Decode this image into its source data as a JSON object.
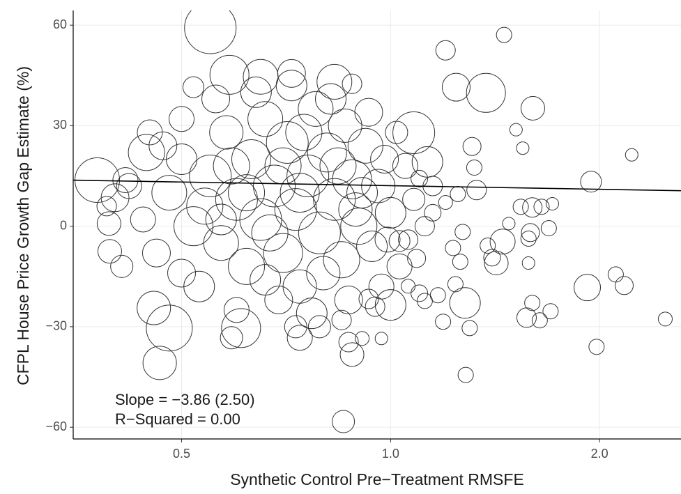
{
  "chart_data": {
    "type": "bubble",
    "x_label": "Synthetic Control Pre−Treatment RMSFE",
    "y_label": "CFPL House Price Growth Gap Estimate (%)",
    "annotations": [
      "Slope = −3.86 (2.50)",
      "R−Squared = 0.00"
    ],
    "x_log": true,
    "grid": true,
    "xlim": [
      0.349,
      2.62
    ],
    "ylim": [
      -63.5,
      64.4
    ],
    "xticks": [
      0.5,
      {
        "value": 1,
        "label": "1.0"
      },
      {
        "value": 2,
        "label": "2.0"
      }
    ],
    "yticks": [
      {
        "value": -60,
        "label": "−60"
      },
      {
        "value": -30,
        "label": "−30"
      },
      0,
      30,
      60
    ],
    "fit_line": {
      "color": "#000000",
      "x": [
        0.349,
        2.62
      ],
      "y": [
        13.75,
        10.6
      ]
    },
    "series": [
      {
        "color": "#333333",
        "x": [
          0.55,
          0.465,
          0.855,
          1.457,
          1.2,
          1.372,
          1.243,
          1.603,
          1.516,
          1.55,
          2.225,
          1.944,
          2.487,
          1.98,
          2.17,
          2.11,
          1.92,
          1.283,
          1.3,
          1.19,
          1.6,
          1.7,
          1.57,
          1.64,
          1.58,
          1.69,
          1.6,
          1.54,
          1.65,
          1.71,
          1.59,
          1.58,
          1.45,
          1.48,
          1.42,
          1.4,
          1.38,
          1.28,
          1.17,
          1.12,
          1.24,
          1.26,
          1.27,
          1.23,
          1.32,
          1.31,
          1.25,
          1.33,
          1.2,
          0.378,
          0.393,
          0.394,
          0.401,
          0.456,
          0.445,
          0.415,
          0.48,
          0.609,
          0.59,
          0.74,
          0.88,
          0.87,
          0.91,
          0.97,
          1.0,
          0.93,
          1.06,
          1.09,
          1.03,
          0.52,
          0.586,
          0.65,
          0.72,
          0.83,
          0.88,
          1.08,
          1.13,
          1.1,
          0.48,
          0.5,
          0.52,
          0.55,
          0.57,
          0.58,
          0.6,
          0.62,
          0.63,
          0.65,
          0.66,
          0.68,
          0.7,
          0.71,
          0.73,
          0.74,
          0.76,
          0.78,
          0.79,
          0.81,
          0.83,
          0.85,
          0.86,
          0.88,
          0.9,
          0.92,
          0.94,
          0.96,
          0.98,
          1.0,
          1.03,
          1.05,
          1.08,
          1.12,
          1.15,
          0.46,
          0.44,
          0.42,
          0.47,
          0.53,
          0.56,
          0.6,
          0.64,
          0.69,
          0.72,
          0.77,
          0.82,
          0.87,
          0.93,
          0.97,
          1.02,
          0.54,
          0.59,
          0.67,
          0.75,
          0.8,
          0.84,
          0.89,
          0.95,
          0.99,
          0.41,
          0.39,
          0.5,
          0.66,
          0.74,
          0.7,
          0.62,
          0.57,
          0.91,
          1.06,
          1.1,
          1.15,
          0.5,
          0.45,
          0.79,
          0.73,
          0.85
        ],
        "values": [
          59.2,
          -40.8,
          -58.3,
          57.1,
          52.5,
          39.8,
          41.5,
          35.2,
          28.8,
          23.3,
          21.3,
          13.3,
          -27.7,
          -36,
          -17.7,
          -14.4,
          -18.3,
          -44.4,
          -30.4,
          -28.5,
          -22.9,
          -25.4,
          -27.3,
          -28.1,
          -11,
          -0.6,
          5.6,
          5.8,
          5.8,
          6.7,
          -1.9,
          -3.7,
          -4.6,
          0.8,
          -11,
          -9.4,
          -5.8,
          -22.9,
          -20.6,
          -22.3,
          -17.3,
          -10.6,
          -1.7,
          -6.5,
          17.5,
          23.8,
          9.6,
          10.8,
          7.1,
          13.75,
          0.8,
          -7.5,
          8.5,
          -24.4,
          22,
          13.75,
          -30.4,
          -30.4,
          -33.3,
          -33.3,
          -38.3,
          -34.6,
          -33.5,
          -33.5,
          -23.5,
          -21.7,
          -17.9,
          -9.6,
          -4.4,
          41.5,
          45.2,
          44.6,
          45.6,
          43.1,
          42.5,
          27.9,
          19.2,
          14.2,
          10,
          20,
          0,
          15,
          -5,
          28,
          8,
          -12,
          20,
          2,
          32,
          12,
          -8,
          25,
          5,
          -18,
          15,
          35,
          -2,
          22,
          8,
          -10,
          30,
          14,
          0,
          24,
          -6,
          12,
          20,
          4,
          -12,
          18,
          8,
          0,
          12,
          -8,
          2,
          12,
          24,
          -18,
          38,
          -25,
          40,
          -22,
          42,
          -26,
          38,
          -22,
          34,
          -18,
          28,
          6,
          18,
          -2,
          28,
          -14,
          18,
          5,
          -24,
          -4,
          -12,
          6,
          -14,
          -16,
          10,
          18,
          10,
          2,
          10,
          -4,
          -20,
          4,
          32,
          28,
          -30,
          -30,
          -28
        ],
        "sizes": [
          37,
          24,
          16,
          11,
          14,
          28,
          20,
          17,
          9,
          9,
          9,
          15,
          10,
          11,
          13,
          11,
          19,
          11,
          11,
          11,
          11,
          11,
          14,
          11,
          9,
          11,
          14,
          11,
          11,
          9,
          13,
          11,
          18,
          9,
          17,
          12,
          11,
          22,
          11,
          11,
          11,
          11,
          11,
          11,
          11,
          13,
          11,
          14,
          10,
          32,
          17,
          17,
          20,
          24,
          26,
          18,
          33,
          28,
          16,
          18,
          17,
          14,
          10,
          9,
          22,
          14,
          10,
          13,
          15,
          15,
          28,
          25,
          20,
          25,
          14,
          30,
          22,
          12,
          25,
          22,
          28,
          30,
          25,
          24,
          30,
          26,
          28,
          30,
          25,
          30,
          28,
          30,
          30,
          24,
          30,
          25,
          30,
          28,
          30,
          26,
          24,
          28,
          26,
          25,
          22,
          24,
          20,
          22,
          18,
          18,
          16,
          14,
          14,
          20,
          18,
          18,
          20,
          22,
          20,
          18,
          22,
          20,
          22,
          22,
          22,
          20,
          20,
          18,
          16,
          26,
          26,
          26,
          26,
          24,
          26,
          24,
          14,
          18,
          16,
          14,
          20,
          22,
          28,
          26,
          26,
          22,
          22,
          14,
          12,
          12,
          18,
          18,
          16,
          16,
          14
        ]
      }
    ]
  }
}
